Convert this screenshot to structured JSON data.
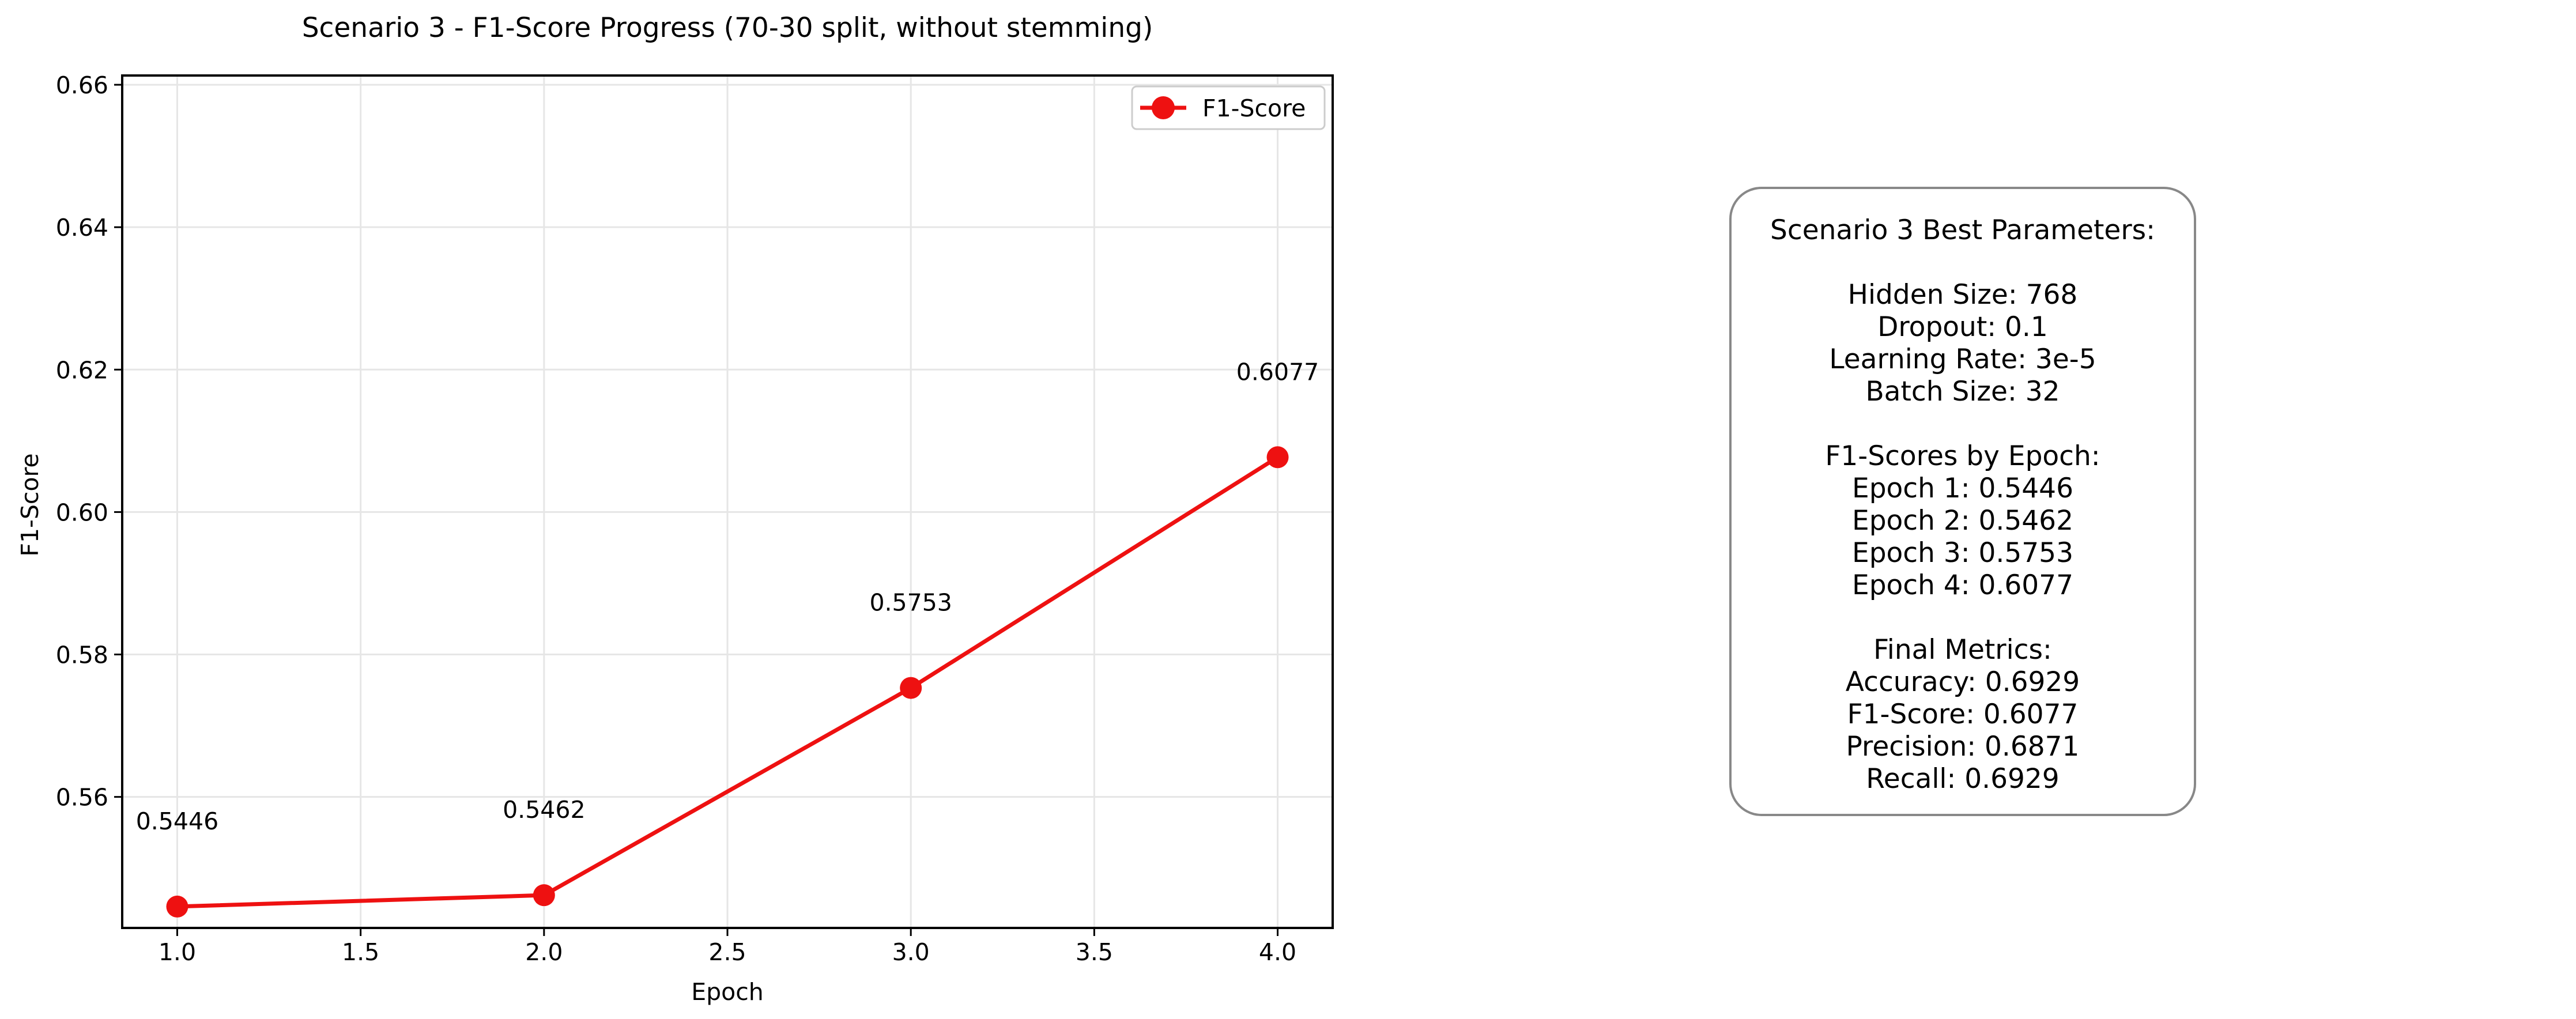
{
  "chart_data": {
    "type": "line",
    "title": "Scenario 3 - F1-Score Progress (70-30 split, without stemming)",
    "xlabel": "Epoch",
    "ylabel": "F1-Score",
    "xlim": [
      0.85,
      4.15
    ],
    "ylim": [
      0.5416,
      0.6613
    ],
    "xticks": [
      1.0,
      1.5,
      2.0,
      2.5,
      3.0,
      3.5,
      4.0
    ],
    "xtick_labels": [
      "1.0",
      "1.5",
      "2.0",
      "2.5",
      "3.0",
      "3.5",
      "4.0"
    ],
    "yticks": [
      0.56,
      0.58,
      0.6,
      0.62,
      0.64,
      0.66
    ],
    "ytick_labels": [
      "0.56",
      "0.58",
      "0.60",
      "0.62",
      "0.64",
      "0.66"
    ],
    "grid": true,
    "legend_position": "top-right",
    "series": [
      {
        "name": "F1-Score",
        "color": "#ee1111",
        "x": [
          1,
          2,
          3,
          4
        ],
        "y": [
          0.5446,
          0.5462,
          0.5753,
          0.6077
        ],
        "labels": [
          "0.5446",
          "0.5462",
          "0.5753",
          "0.6077"
        ]
      }
    ]
  },
  "info_box": {
    "title": "Scenario 3 Best Parameters:",
    "params": [
      "Hidden Size: 768",
      "Dropout: 0.1",
      "Learning Rate: 3e-5",
      "Batch Size: 32"
    ],
    "epochs_title": "F1-Scores by Epoch:",
    "epochs": [
      "Epoch 1: 0.5446",
      "Epoch 2: 0.5462",
      "Epoch 3: 0.5753",
      "Epoch 4: 0.6077"
    ],
    "metrics_title": "Final Metrics:",
    "metrics": [
      "Accuracy: 0.6929",
      "F1-Score: 0.6077",
      "Precision: 0.6871",
      "Recall: 0.6929"
    ]
  }
}
